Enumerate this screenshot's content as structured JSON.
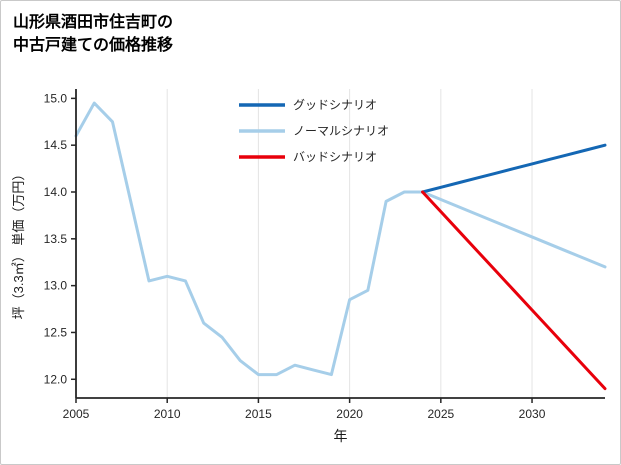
{
  "title": {
    "line1": "山形県酒田市住吉町の",
    "line2": "中古戸建ての価格推移"
  },
  "chart_data": {
    "type": "line",
    "title": "山形県酒田市住吉町の中古戸建ての価格推移",
    "xlabel": "年",
    "ylabel": "坪（3.3㎡） 単価（万円）",
    "xlim": [
      2005,
      2034
    ],
    "ylim": [
      11.8,
      15.1
    ],
    "xticks": [
      2005,
      2010,
      2015,
      2020,
      2025,
      2030
    ],
    "yticks": [
      12.0,
      12.5,
      13.0,
      13.5,
      14.0,
      14.5,
      15.0
    ],
    "grid": "vertical-only",
    "grid_color": "#e4e4e4",
    "axis_color": "#262626",
    "legend_position": "upper-center-inside",
    "series": [
      {
        "id": "good-scenario",
        "name": "グッドシナリオ",
        "color": "#1467b4",
        "zorder": 2,
        "x": [
          2024,
          2025,
          2026,
          2027,
          2028,
          2029,
          2030,
          2031,
          2032,
          2033,
          2034
        ],
        "y": [
          14.0,
          14.05,
          14.1,
          14.15,
          14.2,
          14.25,
          14.3,
          14.35,
          14.4,
          14.45,
          14.5
        ]
      },
      {
        "id": "normal-scenario",
        "name": "ノーマルシナリオ",
        "color": "#a6cee9",
        "zorder": 1,
        "x": [
          2005,
          2006,
          2007,
          2008,
          2009,
          2010,
          2011,
          2012,
          2013,
          2014,
          2015,
          2016,
          2017,
          2018,
          2019,
          2020,
          2021,
          2022,
          2023,
          2024,
          2025,
          2026,
          2027,
          2028,
          2029,
          2030,
          2031,
          2032,
          2033,
          2034
        ],
        "y": [
          14.6,
          14.95,
          14.75,
          13.9,
          13.05,
          13.1,
          13.05,
          12.6,
          12.45,
          12.2,
          12.05,
          12.05,
          12.15,
          12.1,
          12.05,
          12.85,
          12.95,
          13.9,
          14.0,
          14.0,
          13.92,
          13.84,
          13.76,
          13.68,
          13.6,
          13.52,
          13.44,
          13.36,
          13.28,
          13.2
        ]
      },
      {
        "id": "bad-scenario",
        "name": "バッドシナリオ",
        "color": "#e8000b",
        "zorder": 3,
        "x": [
          2024,
          2025,
          2026,
          2027,
          2028,
          2029,
          2030,
          2031,
          2032,
          2033,
          2034
        ],
        "y": [
          14.0,
          13.79,
          13.58,
          13.37,
          13.16,
          12.95,
          12.74,
          12.53,
          12.32,
          12.11,
          11.9
        ]
      }
    ]
  }
}
